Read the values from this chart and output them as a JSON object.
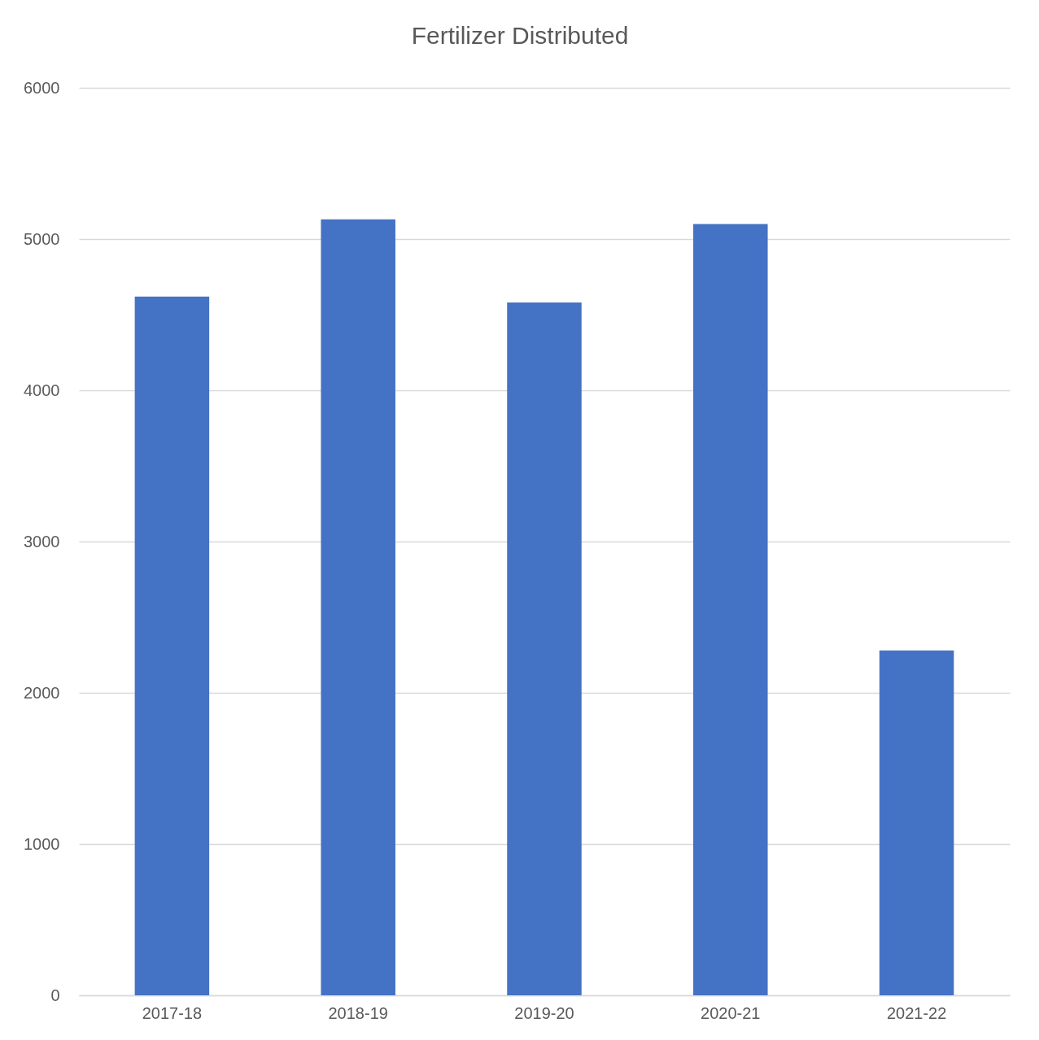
{
  "chart_data": {
    "type": "bar",
    "title": "Fertilizer Distributed",
    "categories": [
      "2017-18",
      "2018-19",
      "2019-20",
      "2020-21",
      "2021-22"
    ],
    "values": [
      4620,
      5130,
      4580,
      5100,
      2280
    ],
    "color": "#4472c4",
    "ylim": [
      0,
      6000
    ],
    "yticks": [
      0,
      1000,
      2000,
      3000,
      4000,
      5000,
      6000
    ],
    "grid": "y"
  }
}
